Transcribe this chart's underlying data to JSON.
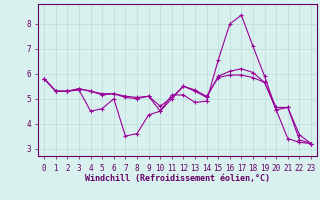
{
  "xlabel": "Windchill (Refroidissement éolien,°C)",
  "background_color": "#d8f0ee",
  "grid_color": "#b8dcd8",
  "line_color": "#990099",
  "xlim": [
    -0.5,
    23.5
  ],
  "ylim": [
    2.7,
    8.8
  ],
  "yticks": [
    3,
    4,
    5,
    6,
    7,
    8
  ],
  "xticks": [
    0,
    1,
    2,
    3,
    4,
    5,
    6,
    7,
    8,
    9,
    10,
    11,
    12,
    13,
    14,
    15,
    16,
    17,
    18,
    19,
    20,
    21,
    22,
    23
  ],
  "series": [
    [
      5.8,
      5.3,
      5.3,
      5.35,
      4.5,
      4.6,
      5.0,
      3.5,
      3.6,
      4.35,
      4.5,
      5.15,
      5.15,
      4.85,
      4.9,
      6.55,
      8.0,
      8.35,
      7.1,
      5.9,
      4.55,
      3.4,
      3.25,
      3.2
    ],
    [
      5.8,
      5.3,
      5.3,
      5.4,
      5.3,
      5.15,
      5.2,
      5.05,
      5.0,
      5.1,
      4.5,
      5.0,
      5.5,
      5.3,
      5.05,
      5.9,
      6.1,
      6.2,
      6.05,
      5.65,
      4.55,
      4.65,
      3.35,
      3.2
    ],
    [
      5.8,
      5.3,
      5.3,
      5.4,
      5.3,
      5.2,
      5.2,
      5.1,
      5.05,
      5.1,
      4.7,
      5.05,
      5.5,
      5.35,
      5.1,
      5.85,
      5.95,
      5.95,
      5.85,
      5.65,
      4.65,
      4.65,
      3.55,
      3.2
    ]
  ]
}
